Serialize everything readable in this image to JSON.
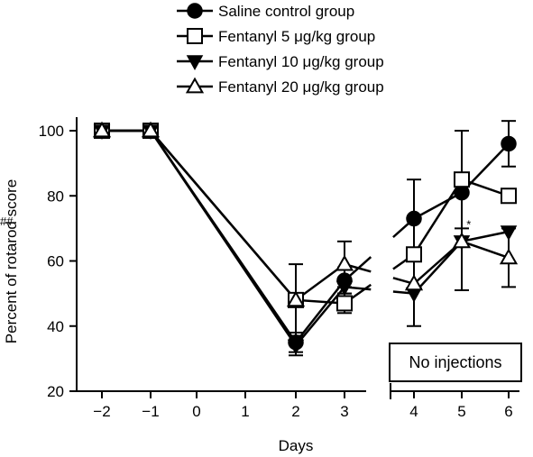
{
  "chart_data": {
    "type": "line",
    "xlabel": "Days",
    "ylabel": "Percent of rotarod score",
    "ylim": [
      20,
      100
    ],
    "yticks": [
      20,
      40,
      60,
      80,
      100
    ],
    "xticks": [
      -2,
      -1,
      0,
      1,
      2,
      3,
      4,
      5,
      6
    ],
    "xtick_labels": [
      "−2",
      "−1",
      "0",
      "1",
      "2",
      "3",
      "4",
      "5",
      "6"
    ],
    "axis_break_between": [
      3,
      4
    ],
    "legend_position": "top-center",
    "series": [
      {
        "name": "Saline control group",
        "marker": "filled-circle",
        "x": [
          -2,
          -1,
          2,
          3,
          4,
          5,
          6
        ],
        "y": [
          100,
          100,
          35,
          54,
          73,
          81,
          96
        ],
        "err": [
          0,
          0,
          3,
          4,
          12,
          0,
          7
        ]
      },
      {
        "name": "Fentanyl 5 μg/kg group",
        "marker": "open-square",
        "x": [
          -2,
          -1,
          2,
          3,
          4,
          5,
          6
        ],
        "y": [
          100,
          100,
          48,
          47,
          62,
          85,
          80
        ],
        "err": [
          0,
          0,
          0,
          3,
          0,
          15,
          0
        ]
      },
      {
        "name": "Fentanyl 10 μg/kg group",
        "marker": "filled-triangle-down",
        "x": [
          -2,
          -1,
          2,
          3,
          4,
          5,
          6
        ],
        "y": [
          100,
          100,
          34,
          52,
          50,
          66,
          69
        ],
        "err": [
          0,
          0,
          3,
          0,
          10,
          0,
          0
        ]
      },
      {
        "name": "Fentanyl 20 μg/kg group",
        "marker": "open-triangle-up",
        "x": [
          -2,
          -1,
          2,
          3,
          4,
          5,
          6
        ],
        "y": [
          100,
          100,
          48,
          59,
          53,
          66,
          61
        ],
        "err": [
          0,
          0,
          11,
          7,
          0,
          15,
          9
        ]
      }
    ],
    "annotations": [
      {
        "text": "*",
        "x": 5.1,
        "y": 70
      },
      {
        "text": "##",
        "x": 6.2,
        "y": 71
      }
    ],
    "box_label": "No injections"
  }
}
